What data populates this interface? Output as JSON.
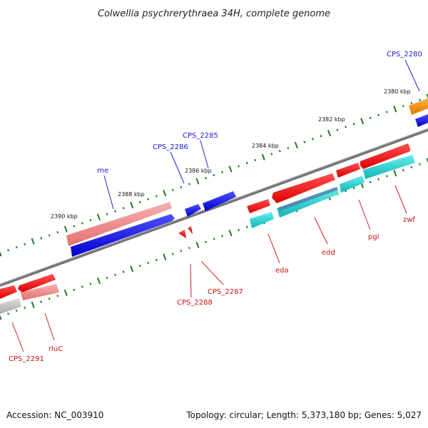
{
  "title": "Colwellia psychrerythraea 34H, complete genome",
  "footer": {
    "accession": "Accession: NC_003910",
    "topology": "Topology: circular; Length: 5,373,180 bp; Genes: 5,027"
  },
  "ticks": [
    "2380 kbp",
    "2382 kbp",
    "2384 kbp",
    "2386 kbp",
    "2388 kbp",
    "2390 kbp"
  ],
  "genes_forward": [
    "CPS_2280",
    "CPS_2285",
    "CPS_2286",
    "rne"
  ],
  "genes_reverse": [
    "zwf",
    "pgl",
    "edd",
    "eda",
    "CPS_2287",
    "CPS_2288",
    "rluC",
    "CPS_2291"
  ],
  "colors": {
    "backbone": "#7f7f7f",
    "tick": "#1e7a1e",
    "forward_cds": "#0000ee",
    "reverse_cds": "#ee0000",
    "pink": "#ef8a8a",
    "cyan": "#22cccc",
    "orange": "#f08a00",
    "grey": "#c0c0c0",
    "forward_label": "#1a1acc",
    "reverse_label": "#cc1111"
  }
}
